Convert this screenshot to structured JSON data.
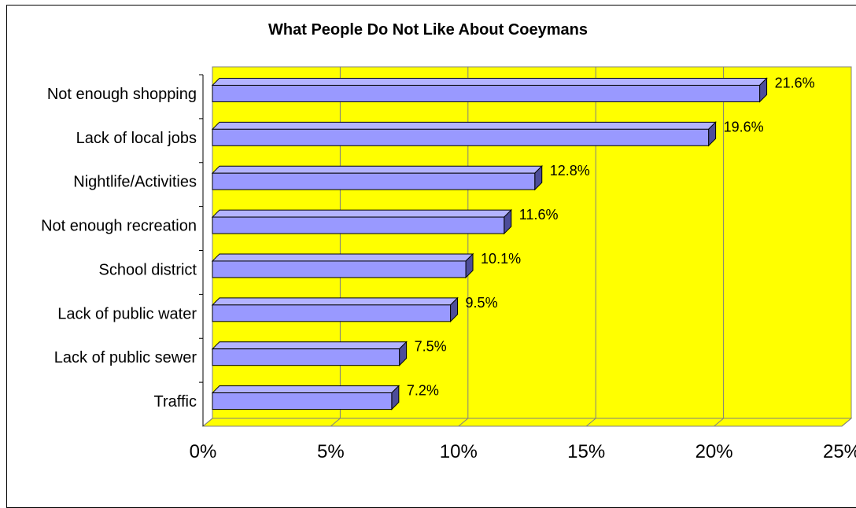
{
  "chart_data": {
    "type": "bar",
    "orientation": "horizontal",
    "title": "What People Do Not Like About Coeymans",
    "categories": [
      "Not enough shopping",
      "Lack of local jobs",
      "Nightlife/Activities",
      "Not enough recreation",
      "School district",
      "Lack of public water",
      "Lack of public sewer",
      "Traffic"
    ],
    "values": [
      21.6,
      19.6,
      12.8,
      11.6,
      10.1,
      9.5,
      7.5,
      7.2
    ],
    "data_labels": [
      "21.6%",
      "19.6%",
      "12.8%",
      "11.6%",
      "10.1%",
      "9.5%",
      "7.5%",
      "7.2%"
    ],
    "xlim": [
      0,
      25
    ],
    "xticks": [
      "0%",
      "5%",
      "10%",
      "15%",
      "20%",
      "25%"
    ],
    "grid": true,
    "style": "3d",
    "colors": {
      "plot_background": "#ffff00",
      "bar_fill": "#9999ff",
      "bar_top": "#b3b3ff",
      "bar_side": "#4d4d99",
      "gridline": "#808080"
    }
  }
}
